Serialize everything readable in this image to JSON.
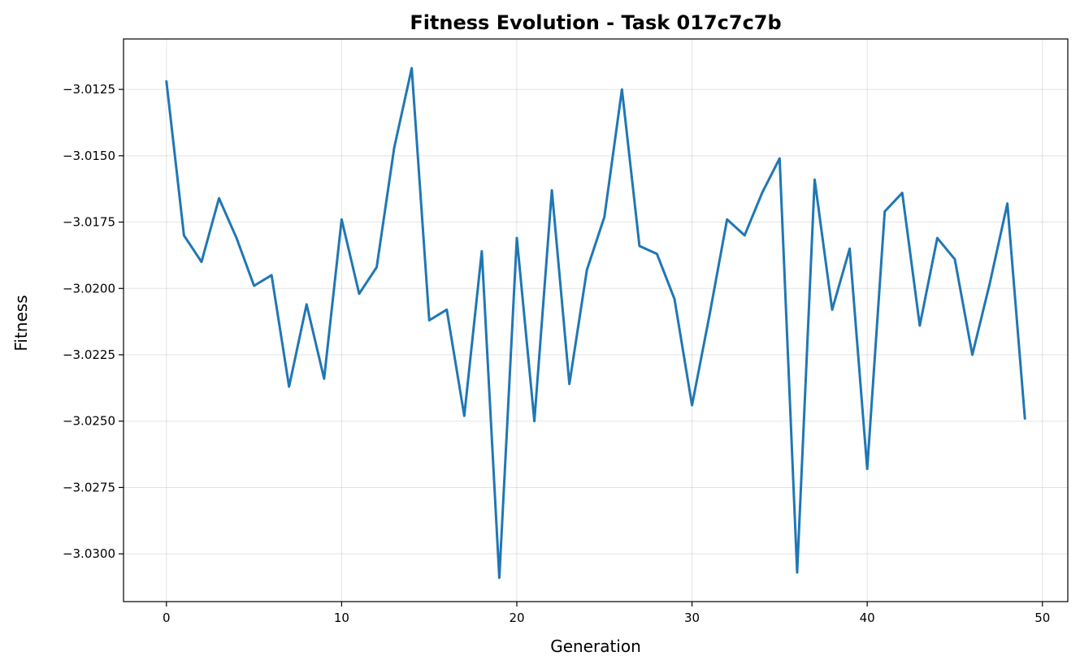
{
  "chart_data": {
    "type": "line",
    "title": "Fitness Evolution - Task 017c7c7b",
    "xlabel": "Generation",
    "ylabel": "Fitness",
    "xlim": [
      -2.45,
      51.45
    ],
    "ylim": [
      -3.0318,
      -3.0106
    ],
    "xticks": [
      0,
      10,
      20,
      30,
      40,
      50
    ],
    "xtick_labels": [
      "0",
      "10",
      "20",
      "30",
      "40",
      "50"
    ],
    "yticks": [
      -3.0125,
      -3.015,
      -3.0175,
      -3.02,
      -3.0225,
      -3.025,
      -3.0275,
      -3.03
    ],
    "ytick_labels": [
      "−3.0125",
      "−3.0150",
      "−3.0175",
      "−3.0200",
      "−3.0225",
      "−3.0250",
      "−3.0275",
      "−3.0300"
    ],
    "grid": true,
    "line_color": "#1f77b4",
    "series": [
      {
        "x": [
          0,
          1,
          2,
          3,
          4,
          5,
          6,
          7,
          8,
          9,
          10,
          11,
          12,
          13,
          14,
          15,
          16,
          17,
          18,
          19,
          20,
          21,
          22,
          23,
          24,
          25,
          26,
          27,
          28,
          29,
          30,
          31,
          32,
          33,
          34,
          35,
          36,
          37,
          38,
          39,
          40,
          41,
          42,
          43,
          44,
          45,
          46,
          47,
          48,
          49
        ],
        "values": [
          -3.0122,
          -3.018,
          -3.019,
          -3.0166,
          -3.0181,
          -3.0199,
          -3.0195,
          -3.0237,
          -3.0206,
          -3.0234,
          -3.0174,
          -3.0202,
          -3.0192,
          -3.0147,
          -3.0117,
          -3.0212,
          -3.0208,
          -3.0248,
          -3.0186,
          -3.0309,
          -3.0181,
          -3.025,
          -3.0163,
          -3.0236,
          -3.0193,
          -3.0173,
          -3.0125,
          -3.0184,
          -3.0187,
          -3.0204,
          -3.0244,
          -3.021,
          -3.0174,
          -3.018,
          -3.0164,
          -3.0151,
          -3.0307,
          -3.0159,
          -3.0208,
          -3.0185,
          -3.0268,
          -3.0171,
          -3.0164,
          -3.0214,
          -3.0181,
          -3.0189,
          -3.0225,
          -3.0198,
          -3.0168,
          -3.0249
        ]
      }
    ]
  }
}
